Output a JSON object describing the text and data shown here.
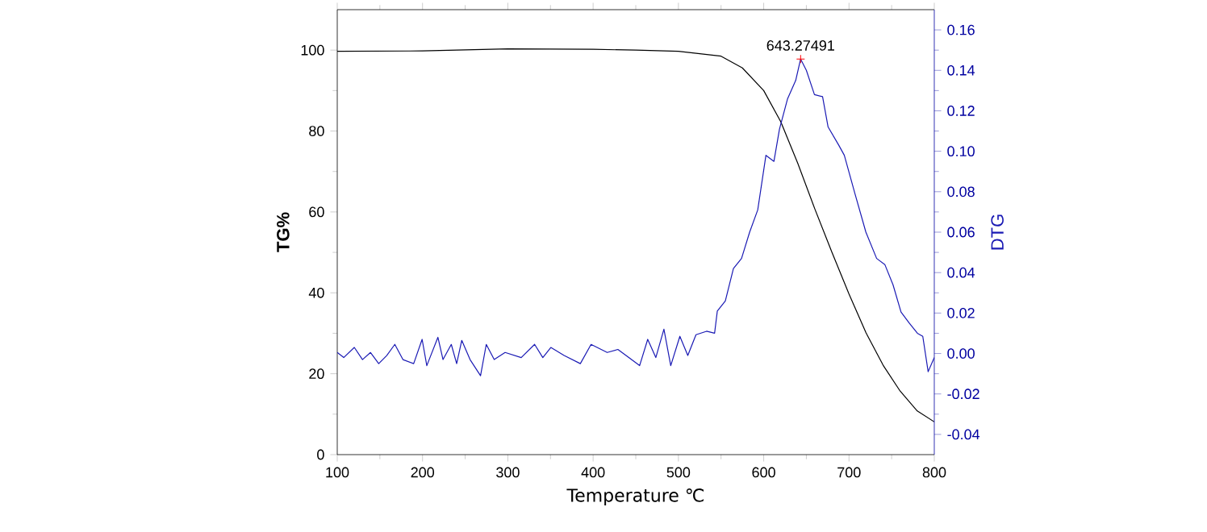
{
  "chart_data": {
    "type": "line",
    "xlabel": "Temperature ℃",
    "ylabel": "TG%",
    "y2label": "DTG",
    "xlim": [
      100,
      800
    ],
    "xticks": [
      100,
      200,
      300,
      400,
      500,
      600,
      700,
      800
    ],
    "ylim": [
      0,
      110
    ],
    "yticks": [
      0,
      20,
      40,
      60,
      80,
      100
    ],
    "y2lim": [
      -0.05,
      0.17
    ],
    "y2ticks": [
      {
        "value": -0.04,
        "label": "-0.04"
      },
      {
        "value": -0.02,
        "label": "-0.02"
      },
      {
        "value": 0,
        "label": "0.00"
      },
      {
        "value": 0.02,
        "label": "0.02"
      },
      {
        "value": 0.04,
        "label": "0.04"
      },
      {
        "value": 0.06,
        "label": "0.06"
      },
      {
        "value": 0.08,
        "label": "0.08"
      },
      {
        "value": 0.1,
        "label": "0.10"
      },
      {
        "value": 0.12,
        "label": "0.12"
      },
      {
        "value": 0.14,
        "label": "0.14"
      },
      {
        "value": 0.16,
        "label": "0.16"
      }
    ],
    "annotations": [
      "643.27491"
    ],
    "series": [
      {
        "color": "#000000",
        "axis": "y",
        "x": [
          100,
          200,
          300,
          400,
          450,
          500,
          550,
          575,
          600,
          620,
          640,
          660,
          680,
          700,
          720,
          740,
          760,
          780,
          800
        ],
        "values": [
          99.7,
          99.8,
          100.3,
          100.2,
          100,
          99.7,
          98.5,
          95.6,
          90,
          82.3,
          72,
          60.7,
          50,
          39.7,
          30.1,
          22.1,
          15.7,
          10.8,
          8.1
        ]
      },
      {
        "color": "#1a1ab4",
        "axis": "y2",
        "x": [
          100,
          107.6,
          120,
          129.6,
          139,
          148.6,
          158,
          167.5,
          177,
          189.6,
          199.5,
          205,
          218,
          224,
          233.7,
          240,
          246,
          255.7,
          268,
          274.7,
          284,
          296.8,
          315.7,
          331.4,
          341,
          350.4,
          366,
          385,
          397.6,
          416.5,
          429,
          441.8,
          454.5,
          464,
          473.5,
          483,
          491,
          501.7,
          511,
          520.6,
          533,
          542.4,
          545.6,
          555,
          564.5,
          574,
          583.5,
          593,
          602.6,
          612,
          618.5,
          628,
          637.5,
          643.27491,
          650,
          659.5,
          669,
          675.5,
          688,
          694.5,
          707,
          719.8,
          732.4,
          742,
          751.6,
          761,
          770.7,
          780.2,
          786.5,
          792.8,
          800
        ],
        "values": [
          0.0005,
          -0.002,
          0.003,
          -0.003,
          0.0005,
          -0.005,
          -0.001,
          0.0045,
          -0.003,
          -0.005,
          0.007,
          -0.006,
          0.008,
          -0.003,
          0.0045,
          -0.005,
          0.0065,
          -0.003,
          -0.011,
          0.0045,
          -0.003,
          0.0005,
          -0.002,
          0.0045,
          -0.002,
          0.003,
          -0.001,
          -0.005,
          0.0045,
          0.0005,
          0.002,
          -0.002,
          -0.006,
          0.007,
          -0.002,
          0.012,
          -0.006,
          0.0085,
          -0.001,
          0.0093,
          0.011,
          0.01,
          0.021,
          0.026,
          0.042,
          0.047,
          0.06,
          0.071,
          0.098,
          0.095,
          0.111,
          0.126,
          0.135,
          0.1456,
          0.14,
          0.128,
          0.127,
          0.112,
          0.103,
          0.098,
          0.079,
          0.06,
          0.047,
          0.044,
          0.034,
          0.0205,
          0.015,
          0.01,
          0.0085,
          -0.009,
          -0.002
        ]
      }
    ]
  }
}
